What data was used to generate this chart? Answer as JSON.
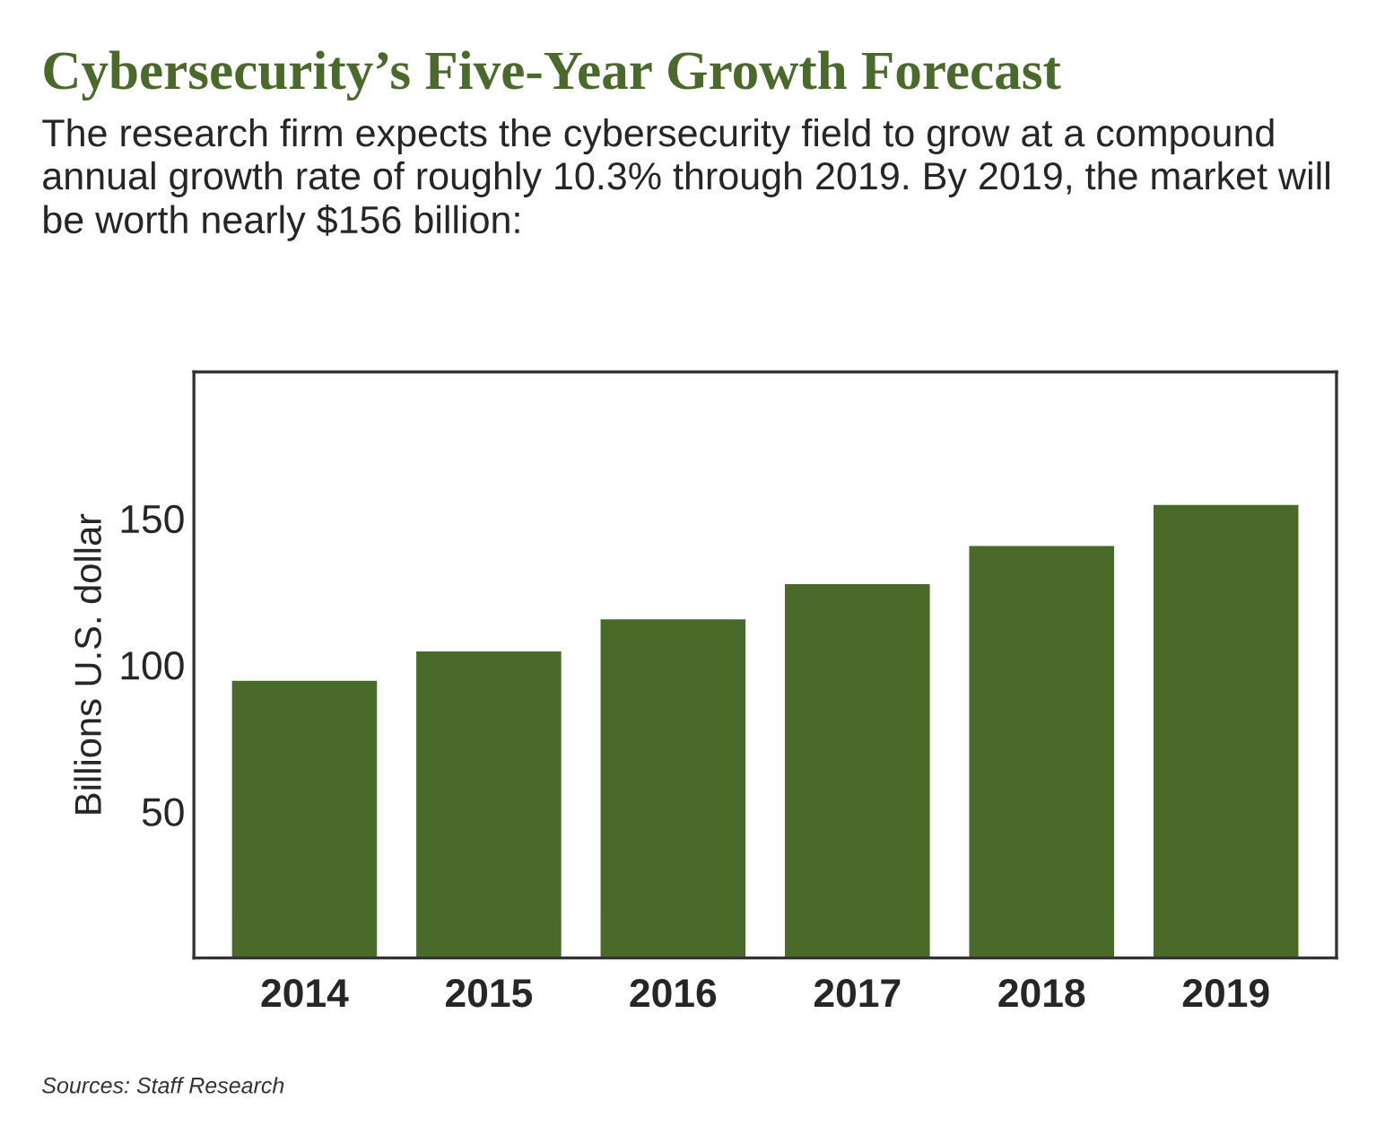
{
  "chart_data": {
    "type": "bar",
    "title": "Cybersecurity’s Five-Year Growth Forecast",
    "subtitle": "The research firm expects the cybersecurity field to grow at a compound annual growth rate of roughly 10.3% through 2019. By 2019, the market will be worth nearly $156 billion:",
    "ylabel": "Billions U.S. dollar",
    "categories": [
      "2014",
      "2015",
      "2016",
      "2017",
      "2018",
      "2019"
    ],
    "values": [
      95,
      105,
      116,
      128,
      141,
      155
    ],
    "color": "#4a6a2a",
    "ylim": [
      0,
      200
    ],
    "yticks": [
      50,
      100,
      150
    ],
    "grid": false,
    "legend": false,
    "annotations": [
      "Sources: Staff Research"
    ]
  }
}
